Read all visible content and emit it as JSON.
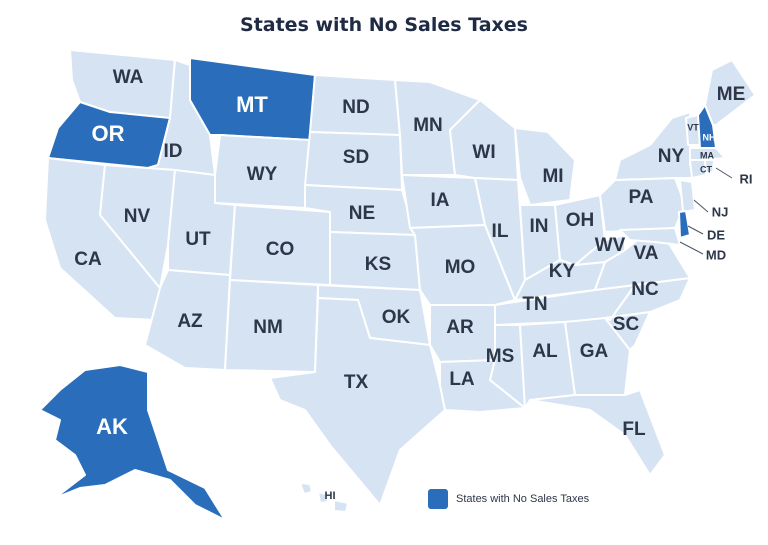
{
  "title": "States with No Sales Taxes",
  "colors": {
    "highlight": "#2a6ebb",
    "base": "#d5e3f3",
    "border": "#ffffff",
    "text": "#2d3748"
  },
  "legend": {
    "label": "States with No Sales Taxes"
  },
  "highlighted_states": [
    "OR",
    "MT",
    "NH",
    "DE",
    "AK"
  ],
  "labels": {
    "WA": "WA",
    "OR": "OR",
    "CA": "CA",
    "ID": "ID",
    "NV": "NV",
    "MT": "MT",
    "WY": "WY",
    "UT": "UT",
    "AZ": "AZ",
    "CO": "CO",
    "NM": "NM",
    "ND": "ND",
    "SD": "SD",
    "NE": "NE",
    "KS": "KS",
    "OK": "OK",
    "TX": "TX",
    "MN": "MN",
    "IA": "IA",
    "MO": "MO",
    "AR": "AR",
    "LA": "LA",
    "WI": "WI",
    "IL": "IL",
    "MI": "MI",
    "IN": "IN",
    "OH": "OH",
    "KY": "KY",
    "TN": "TN",
    "MS": "MS",
    "AL": "AL",
    "GA": "GA",
    "FL": "FL",
    "SC": "SC",
    "NC": "NC",
    "VA": "VA",
    "WV": "WV",
    "PA": "PA",
    "NY": "NY",
    "VT": "VT",
    "NH": "NH",
    "ME": "ME",
    "MA": "MA",
    "CT": "CT",
    "RI": "RI",
    "NJ": "NJ",
    "DE": "DE",
    "MD": "MD",
    "AK": "AK",
    "HI": "HI"
  }
}
